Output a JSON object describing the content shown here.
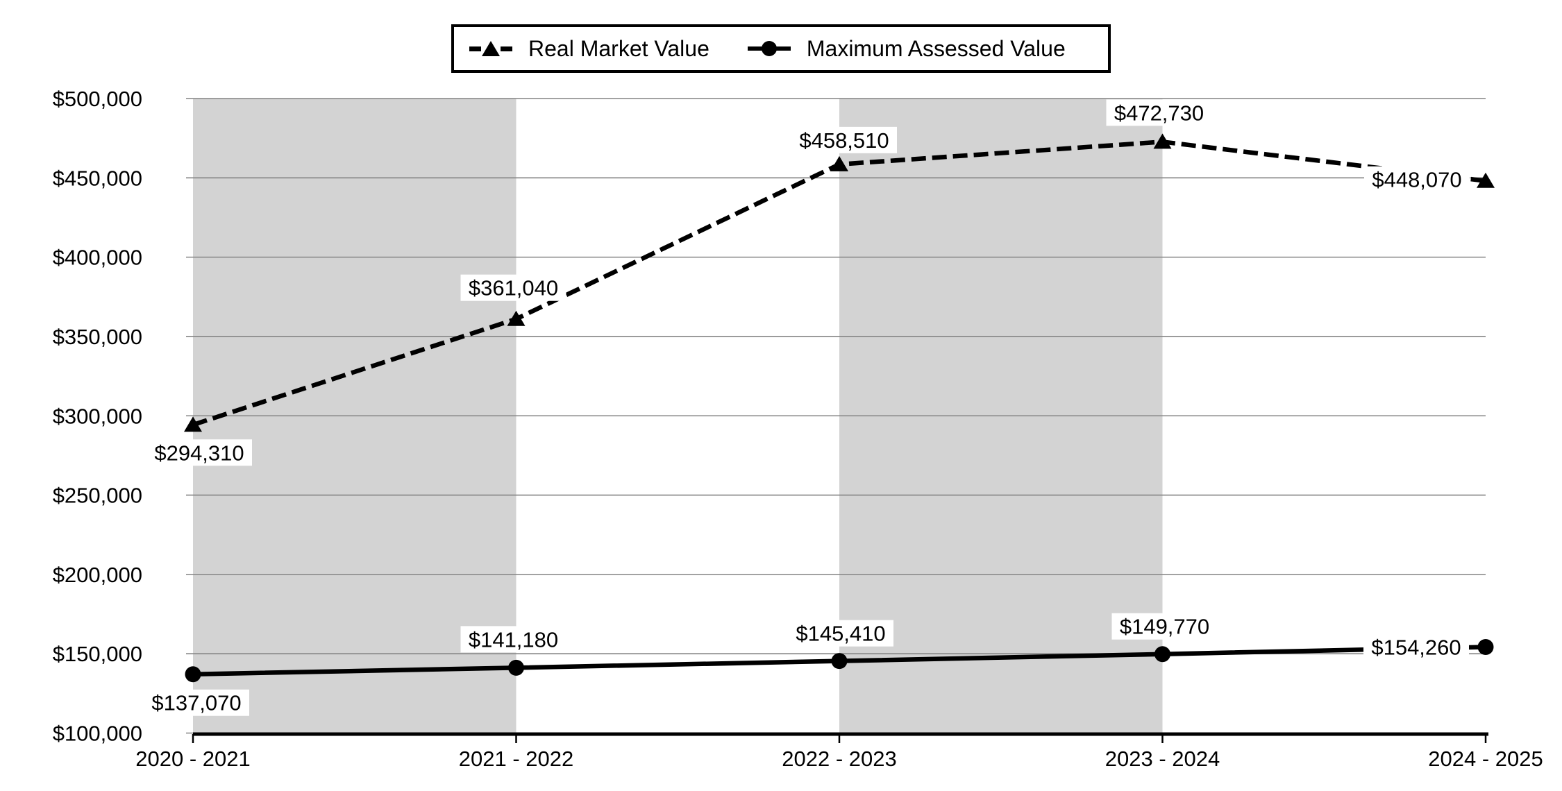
{
  "chart_data": {
    "type": "line",
    "categories": [
      "2020 - 2021",
      "2021 - 2022",
      "2022 - 2023",
      "2023 - 2024",
      "2024 - 2025"
    ],
    "series": [
      {
        "name": "Real Market Value",
        "line_style": "dashed",
        "marker": "triangle",
        "color": "#000000",
        "values": [
          294310,
          361040,
          458510,
          472730,
          448070
        ],
        "labels": [
          "$294,310",
          "$361,040",
          "$458,510",
          "$472,730",
          "$448,070"
        ]
      },
      {
        "name": "Maximum Assessed Value",
        "line_style": "solid",
        "marker": "circle",
        "color": "#000000",
        "values": [
          137070,
          141180,
          145410,
          149770,
          154260
        ],
        "labels": [
          "$137,070",
          "$141,180",
          "$145,410",
          "$149,770",
          "$154,260"
        ]
      }
    ],
    "y_axis": {
      "min": 100000,
      "max": 500000,
      "step": 50000,
      "tick_labels": [
        "$500,000",
        "$450,000",
        "$400,000",
        "$350,000",
        "$300,000",
        "$250,000",
        "$200,000",
        "$150,000",
        "$100,000"
      ]
    },
    "x_axis": {
      "tick_labels": [
        "2020 - 2021",
        "2021 - 2022",
        "2022 - 2023",
        "2023 - 2024",
        "2024 - 2025"
      ]
    },
    "legend_position": "top-center",
    "grid": true,
    "plot_bands": "gray shading between category 1-2 and category 3-4"
  },
  "colors": {
    "series": "#000000",
    "gridline": "#848484",
    "band": "#d3d3d3",
    "label_background": "#ffffff",
    "text": "#000000"
  }
}
